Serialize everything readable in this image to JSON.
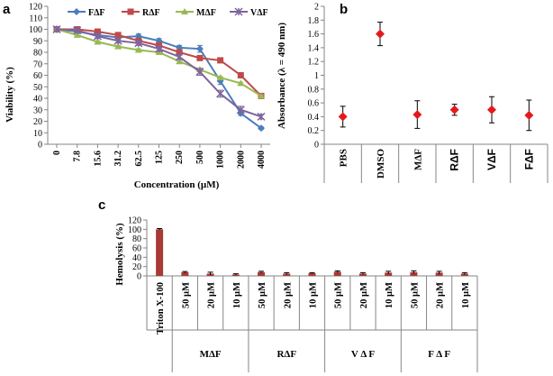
{
  "panel_labels": [
    "a",
    "b",
    "c"
  ],
  "chart_data": [
    {
      "type": "line",
      "panel": "a",
      "xlabel": "Concentration (µM)",
      "ylabel": "Viability (%)",
      "categories": [
        "0",
        "7.8",
        "15.6",
        "31.2",
        "62.5",
        "125",
        "250",
        "500",
        "1000",
        "2000",
        "4000"
      ],
      "ylim": [
        0,
        120
      ],
      "yticks": [
        0,
        10,
        20,
        30,
        40,
        50,
        60,
        70,
        80,
        90,
        100,
        110,
        120
      ],
      "series": [
        {
          "name": "FΔF",
          "color": "#4a7ebb",
          "marker": "diamond",
          "values": [
            100,
            98,
            95,
            93,
            94,
            90,
            84,
            83,
            55,
            27,
            14
          ],
          "errors": [
            1,
            1,
            2,
            2,
            2,
            2,
            2,
            3,
            3,
            2,
            1
          ]
        },
        {
          "name": "RΔF",
          "color": "#be4b48",
          "marker": "square",
          "values": [
            100,
            100,
            98,
            95,
            90,
            86,
            80,
            75,
            73,
            60,
            42
          ],
          "errors": [
            1,
            1,
            2,
            2,
            2,
            2,
            2,
            2,
            2,
            2,
            2
          ]
        },
        {
          "name": "MΔF",
          "color": "#98b954",
          "marker": "triangle",
          "values": [
            100,
            95,
            89,
            85,
            82,
            80,
            72,
            65,
            58,
            53,
            42
          ],
          "errors": [
            1,
            1,
            1,
            1,
            1,
            1,
            1,
            1,
            1,
            1,
            1
          ]
        },
        {
          "name": "VΔF",
          "color": "#7e649e",
          "marker": "cross",
          "values": [
            100,
            99,
            94,
            90,
            88,
            83,
            76,
            63,
            44,
            30,
            24
          ],
          "errors": [
            1,
            1,
            2,
            2,
            2,
            2,
            2,
            3,
            3,
            3,
            2
          ]
        }
      ]
    },
    {
      "type": "scatter",
      "panel": "b",
      "ylabel": "Absorbance (λ = 490 nm)",
      "categories": [
        "PBS",
        "DMSO",
        "MΔF",
        "RΔF",
        "VΔF",
        "FΔF"
      ],
      "category_bold": [
        false,
        false,
        false,
        true,
        true,
        true
      ],
      "ylim": [
        0,
        2
      ],
      "yticks": [
        0,
        0.2,
        0.4,
        0.6,
        0.8,
        1,
        1.2,
        1.4,
        1.6,
        1.8,
        2
      ],
      "values": [
        0.4,
        1.6,
        0.43,
        0.5,
        0.5,
        0.42
      ],
      "errors": [
        0.15,
        0.17,
        0.2,
        0.08,
        0.19,
        0.22
      ],
      "marker_color": "#e31a1c"
    },
    {
      "type": "bar",
      "panel": "c",
      "ylabel": "Hemolysis (%)",
      "ylim": [
        0,
        120
      ],
      "yticks": [
        0,
        20,
        40,
        60,
        80,
        100,
        120
      ],
      "bar_color": "#a83a36",
      "bars": [
        {
          "label": "Triton X-100",
          "value": 100,
          "error": 1.5
        },
        {
          "label": "50 µM",
          "value": 8,
          "error": 1.5
        },
        {
          "label": "20 µM",
          "value": 5,
          "error": 3
        },
        {
          "label": "10 µM",
          "value": 3,
          "error": 1.5
        },
        {
          "label": "50 µM",
          "value": 8,
          "error": 2
        },
        {
          "label": "20 µM",
          "value": 5,
          "error": 2
        },
        {
          "label": "10 µM",
          "value": 6,
          "error": 1
        },
        {
          "label": "50 µM",
          "value": 9,
          "error": 2
        },
        {
          "label": "20 µM",
          "value": 5,
          "error": 2
        },
        {
          "label": "10 µM",
          "value": 7,
          "error": 3
        },
        {
          "label": "50 µM",
          "value": 8,
          "error": 3
        },
        {
          "label": "20 µM",
          "value": 7,
          "error": 3
        },
        {
          "label": "10 µM",
          "value": 5,
          "error": 2
        }
      ],
      "groups": [
        {
          "label": "MΔF",
          "start": 1,
          "end": 3
        },
        {
          "label": "RΔF",
          "start": 4,
          "end": 6
        },
        {
          "label": "V Δ F",
          "start": 7,
          "end": 9
        },
        {
          "label": "F Δ F",
          "start": 10,
          "end": 12
        }
      ]
    }
  ]
}
